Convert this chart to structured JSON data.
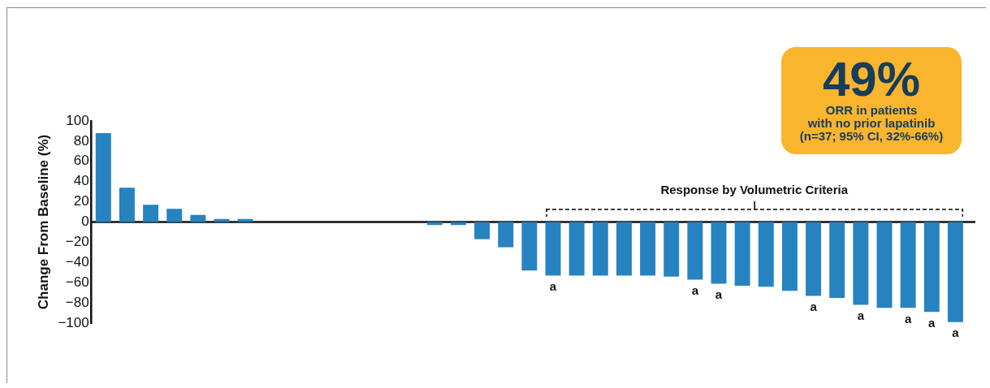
{
  "chart_data": {
    "type": "bar",
    "ylabel": "Change From Baseline (%)",
    "categories": [
      null,
      null,
      null,
      null,
      null,
      null,
      null,
      null,
      null,
      null,
      null,
      null,
      null,
      null,
      null,
      null,
      null,
      null,
      null,
      null,
      null,
      null,
      null,
      null,
      null,
      null,
      null,
      null,
      null,
      null,
      null,
      null,
      null,
      null,
      null,
      null,
      null
    ],
    "values": [
      88,
      34,
      17,
      13,
      7,
      3,
      3,
      0,
      0,
      0,
      0,
      0,
      0,
      0,
      -3,
      -3,
      -17,
      -25,
      -48,
      -53,
      -53,
      -53,
      -53,
      -53,
      -54,
      -57,
      -61,
      -63,
      -64,
      -68,
      -73,
      -75,
      -82,
      -85,
      -85,
      -89,
      -99
    ],
    "value_labels": [
      null,
      null,
      null,
      null,
      null,
      null,
      null,
      null,
      null,
      null,
      null,
      null,
      null,
      null,
      null,
      null,
      null,
      null,
      null,
      "a",
      null,
      null,
      null,
      null,
      null,
      "a",
      "a",
      null,
      null,
      null,
      "a",
      null,
      "a",
      null,
      "a",
      "a",
      "a"
    ],
    "color": "#2683c0",
    "ylim": [
      -100,
      100
    ],
    "yticks": [
      {
        "value": -100,
        "label": "−100"
      },
      {
        "value": -80,
        "label": "−80"
      },
      {
        "value": -60,
        "label": "−60"
      },
      {
        "value": -40,
        "label": "−40"
      },
      {
        "value": -20,
        "label": "−20"
      },
      0,
      20,
      40,
      60,
      80,
      100
    ],
    "tick_labels": "y",
    "grid": false,
    "legend": false,
    "ref_lines": [
      {
        "axis": "y",
        "value": 0,
        "color": "#111111"
      }
    ],
    "annotations": [
      "Response by Volumetric Criteria",
      "49%",
      "ORR in patients\nwith no prior lapatinib\n(n=37; 95% CI, 32%-66%)"
    ]
  }
}
